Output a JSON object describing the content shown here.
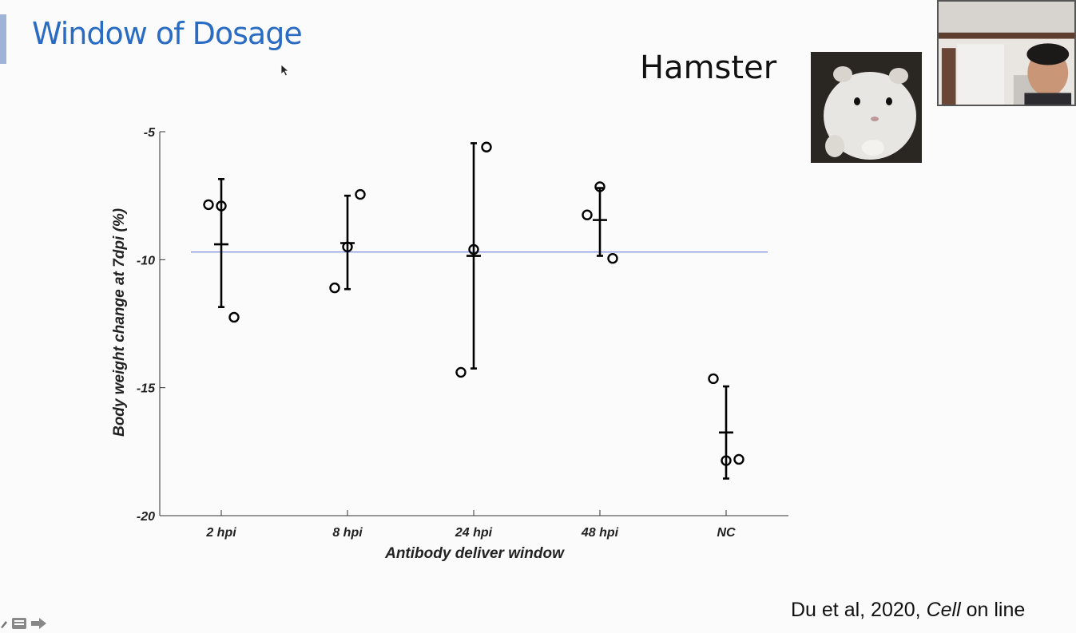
{
  "slide": {
    "title": "Window of Dosage",
    "species_label": "Hamster",
    "citation_prefix": "Du et al, 2020, ",
    "citation_journal": "Cell",
    "citation_suffix": " on line"
  },
  "icons": {
    "cursor": "cursor-arrow-icon",
    "controls": [
      "pen-icon",
      "notes-icon",
      "next-arrow-icon"
    ]
  },
  "colors": {
    "title": "#2a6cc4",
    "reference_line": "#7b8fe0",
    "markers": "#000000"
  },
  "chart_data": {
    "type": "scatter",
    "title": "",
    "xlabel": "Antibody deliver window",
    "ylabel": "Body weight change at 7dpi (%)",
    "categories": [
      "2 hpi",
      "8 hpi",
      "24 hpi",
      "48 hpi",
      "NC"
    ],
    "ylim": [
      -20,
      -5
    ],
    "yticks": [
      -5,
      -10,
      -15,
      -20
    ],
    "points": [
      [
        [
          -0.5,
          -7.85
        ],
        [
          0,
          -7.9
        ],
        [
          0.5,
          -12.25
        ]
      ],
      [
        [
          -0.5,
          -11.1
        ],
        [
          0,
          -9.5
        ],
        [
          0.5,
          -7.45
        ]
      ],
      [
        [
          -0.5,
          -14.4
        ],
        [
          0,
          -9.6
        ],
        [
          0.5,
          -5.6
        ]
      ],
      [
        [
          -0.5,
          -8.25
        ],
        [
          0,
          -7.15
        ],
        [
          0.5,
          -9.95
        ]
      ],
      [
        [
          -0.5,
          -14.65
        ],
        [
          0,
          -17.85
        ],
        [
          0.5,
          -17.8
        ]
      ]
    ],
    "mean": [
      -9.4,
      -9.35,
      -9.85,
      -8.45,
      -16.75
    ],
    "error_low": [
      -11.85,
      -11.15,
      -14.25,
      -9.85,
      -18.55
    ],
    "error_high": [
      -6.85,
      -7.5,
      -5.45,
      -7.2,
      -14.95
    ],
    "reference_line_y": -9.7,
    "grid": false,
    "legend": "none"
  }
}
